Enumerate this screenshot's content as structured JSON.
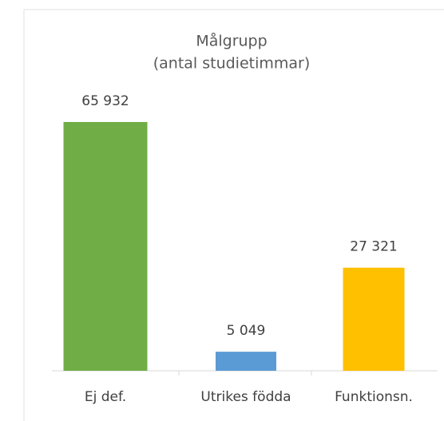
{
  "chart_data": {
    "type": "bar",
    "title": "Målgrupp",
    "subtitle": "(antal studietimmar)",
    "categories": [
      "Ej def.",
      "Utrikes födda",
      "Funktionsn."
    ],
    "values": [
      65932,
      5049,
      27321
    ],
    "value_labels": [
      "65 932",
      "5 049",
      "27 321"
    ],
    "colors": [
      "#70ad47",
      "#5b9bd5",
      "#ffc000"
    ]
  }
}
